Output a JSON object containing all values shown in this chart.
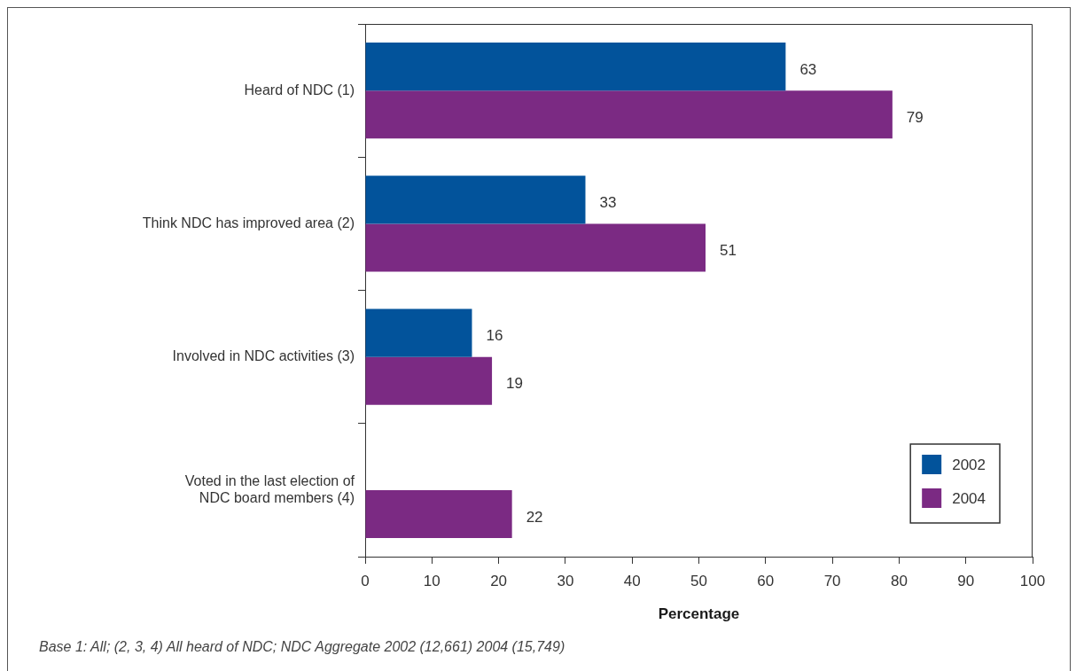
{
  "chart_data": {
    "type": "bar",
    "orientation": "horizontal",
    "categories": [
      "Heard of NDC (1)",
      "Think NDC has improved area (2)",
      "Involved in NDC activities (3)",
      "Voted in the last election of NDC board members (4)"
    ],
    "series": [
      {
        "name": "2002",
        "color": "#02539b",
        "values": [
          63,
          33,
          16,
          null
        ]
      },
      {
        "name": "2004",
        "color": "#7b2a83",
        "values": [
          79,
          51,
          19,
          22
        ]
      }
    ],
    "xlim": [
      0,
      100
    ],
    "xticks": [
      0,
      10,
      20,
      30,
      40,
      50,
      60,
      70,
      80,
      90,
      100
    ],
    "xlabel": "Percentage",
    "data_labels": true,
    "legend": "bottom right",
    "annotations": [
      "Base 1: All; (2, 3, 4) All heard of NDC; NDC Aggregate 2002 (12,661) 2004 (15,749)"
    ]
  }
}
